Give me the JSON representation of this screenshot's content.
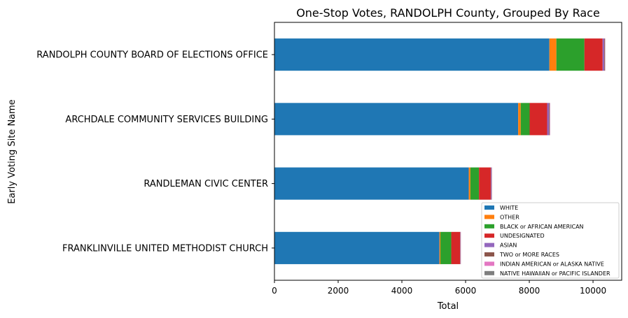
{
  "chart_data": {
    "type": "bar",
    "orientation": "horizontal",
    "stacked": true,
    "title": "One-Stop Votes, RANDOLPH County, Grouped By Race",
    "xlabel": "Total",
    "ylabel": "Early Voting Site Name",
    "xlim": [
      0,
      10900
    ],
    "xticks": [
      "0",
      "2000",
      "4000",
      "6000",
      "8000",
      "10000"
    ],
    "grid": false,
    "legend_position": "lower right",
    "categories": [
      "RANDOLPH COUNTY BOARD OF ELECTIONS OFFICE",
      "ARCHDALE COMMUNITY SERVICES BUILDING",
      "RANDLEMAN CIVIC CENTER",
      "FRANKLINVILLE UNITED METHODIST CHURCH"
    ],
    "series": [
      {
        "name": "WHITE",
        "color": "#1f77b4",
        "values": [
          8630,
          7650,
          6100,
          5180
        ]
      },
      {
        "name": "OTHER",
        "color": "#ff7f0e",
        "values": [
          220,
          80,
          50,
          30
        ]
      },
      {
        "name": "BLACK or AFRICAN AMERICAN",
        "color": "#2ca02c",
        "values": [
          880,
          280,
          270,
          340
        ]
      },
      {
        "name": "UNDESIGNATED",
        "color": "#d62728",
        "values": [
          570,
          550,
          370,
          280
        ]
      },
      {
        "name": "ASIAN",
        "color": "#9467bd",
        "values": [
          50,
          60,
          20,
          10
        ]
      },
      {
        "name": "TWO or MORE RACES",
        "color": "#8c564b",
        "values": [
          20,
          20,
          10,
          5
        ]
      },
      {
        "name": "INDIAN AMERICAN or ALASKA NATIVE",
        "color": "#e377c2",
        "values": [
          10,
          10,
          5,
          5
        ]
      },
      {
        "name": "NATIVE HAWAIIAN or PACIFIC ISLANDER",
        "color": "#7f7f7f",
        "values": [
          5,
          5,
          3,
          2
        ]
      }
    ]
  }
}
